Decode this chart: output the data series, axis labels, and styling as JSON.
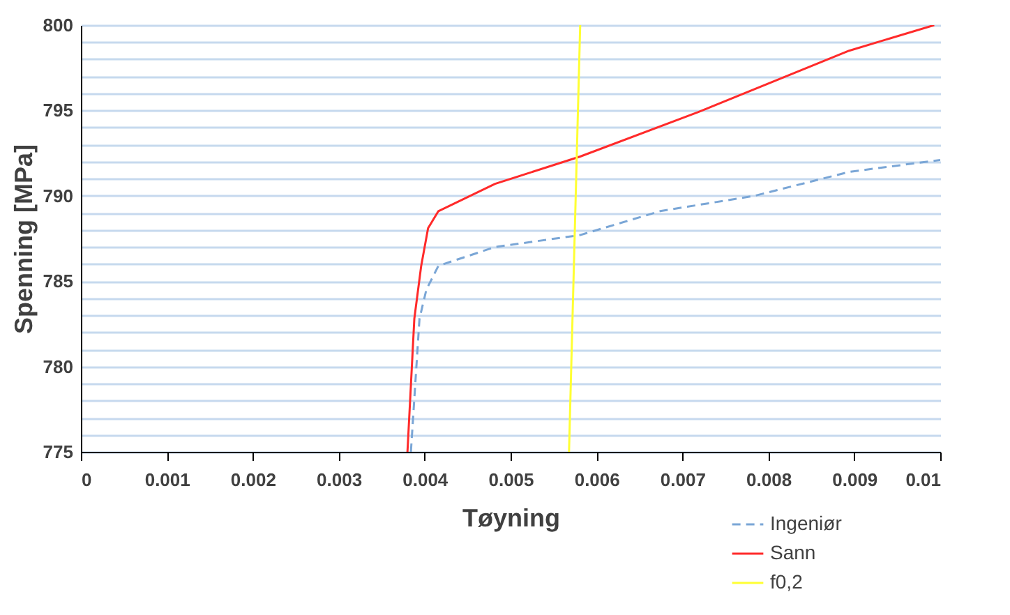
{
  "chart_data": {
    "type": "line",
    "xlabel": "Tøyning",
    "ylabel": "Spenning [MPa]",
    "xlim": [
      0,
      0.01
    ],
    "xticks": [
      0,
      0.001,
      0.002,
      0.003,
      0.004,
      0.005,
      0.006,
      0.007,
      0.008,
      0.009,
      0.01
    ],
    "ylim": [
      775,
      800
    ],
    "yticks": [
      775,
      {
        "value": 776,
        "label": null
      },
      {
        "value": 777,
        "label": null
      },
      {
        "value": 778,
        "label": null
      },
      {
        "value": 779,
        "label": null
      },
      780,
      {
        "value": 781,
        "label": null
      },
      {
        "value": 782,
        "label": null
      },
      {
        "value": 783,
        "label": null
      },
      {
        "value": 784,
        "label": null
      },
      785,
      {
        "value": 786,
        "label": null
      },
      {
        "value": 787,
        "label": null
      },
      {
        "value": 788,
        "label": null
      },
      {
        "value": 789,
        "label": null
      },
      790,
      {
        "value": 791,
        "label": null
      },
      {
        "value": 792,
        "label": null
      },
      {
        "value": 793,
        "label": null
      },
      {
        "value": 794,
        "label": null
      },
      795,
      {
        "value": 796,
        "label": null
      },
      {
        "value": 797,
        "label": null
      },
      {
        "value": 798,
        "label": null
      },
      {
        "value": 799,
        "label": null
      },
      800
    ],
    "grid": "y",
    "legend": "bottom right",
    "marker": "none",
    "series": [
      {
        "name": "Ingeniør",
        "color": "#7aa6d6",
        "line_style": "dashed",
        "x": [
          0.00384,
          0.00394,
          0.00402,
          0.00416,
          0.00482,
          0.00581,
          0.00674,
          0.00784,
          0.00894,
          0.01
        ],
        "values": [
          775,
          782.8,
          784.5,
          785.9,
          787.0,
          787.7,
          789.1,
          790.0,
          791.4,
          792.1
        ]
      },
      {
        "name": "Sann",
        "color": "#ff2a2a",
        "line_style": "solid",
        "x": [
          0.0038,
          0.00388,
          0.00396,
          0.00404,
          0.00416,
          0.00482,
          0.00581,
          0.00718,
          0.00894,
          0.00993
        ],
        "values": [
          775,
          782.8,
          785.9,
          788.1,
          789.1,
          790.7,
          792.3,
          794.9,
          798.5,
          800
        ]
      },
      {
        "name": "f0,2",
        "color": "#ffff33",
        "line_style": "solid",
        "x": [
          0.00568,
          0.00581
        ],
        "values": [
          775,
          800
        ]
      }
    ]
  }
}
